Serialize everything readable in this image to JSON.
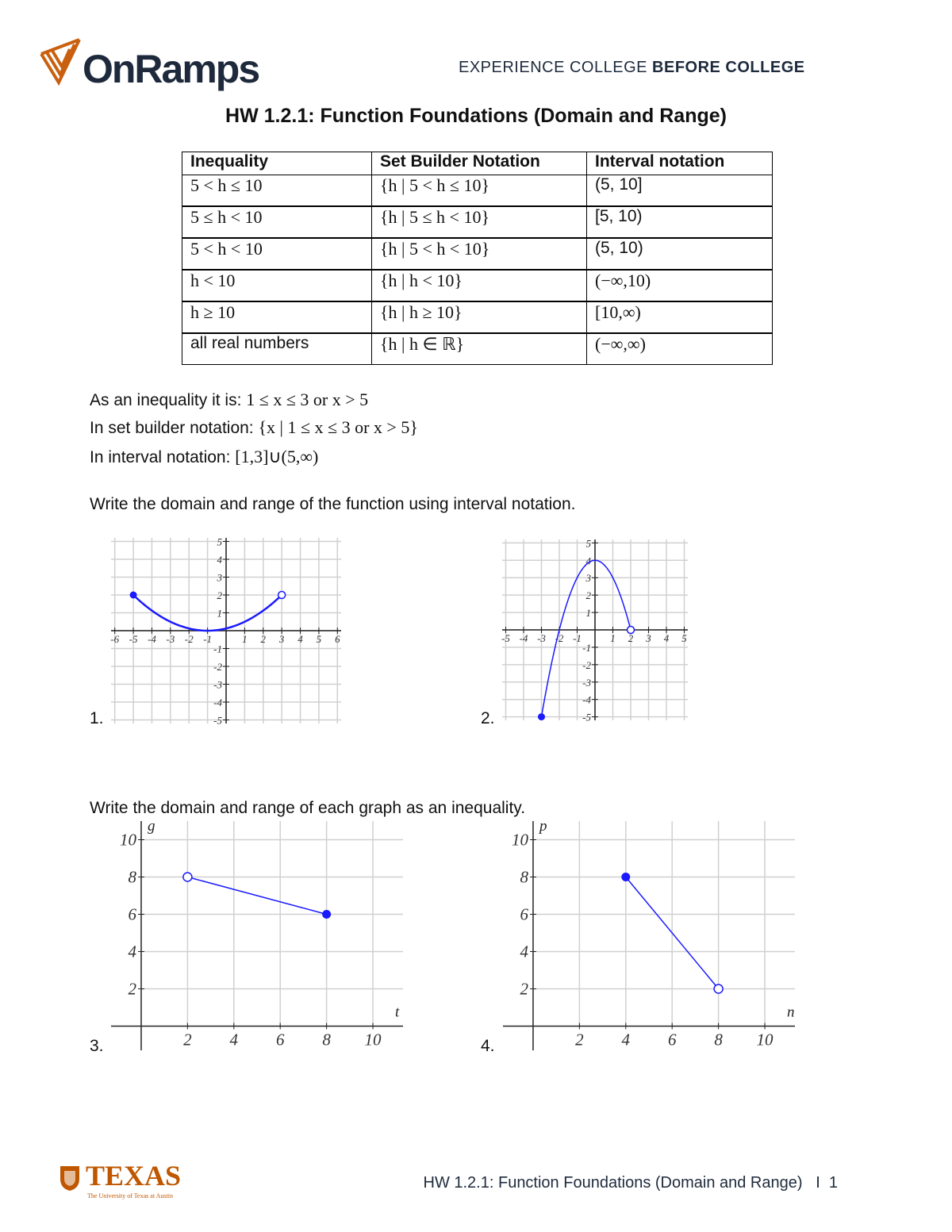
{
  "header": {
    "logo": "OnRamps",
    "tagline_light": "EXPERIENCE COLLEGE",
    "tagline_bold": "BEFORE COLLEGE",
    "brand_color": "#c8600f"
  },
  "title": "HW 1.2.1: Function Foundations (Domain and Range)",
  "table": {
    "headers": [
      "Inequality",
      "Set Builder Notation",
      "Interval notation"
    ],
    "rows": [
      [
        "5 < h ≤ 10",
        "{h | 5 < h ≤ 10}",
        "(5,  10]"
      ],
      [
        "5 ≤ h < 10",
        "{h | 5 ≤ h < 10}",
        "[5,  10)"
      ],
      [
        "5 < h < 10",
        "{h | 5 < h < 10}",
        "(5,  10)"
      ],
      [
        "h < 10",
        "{h | h < 10}",
        "(−∞,10)"
      ],
      [
        "h ≥ 10",
        "{h | h ≥ 10}",
        "[10,∞)"
      ],
      [
        "all real numbers",
        "{h | h ∈ ℝ}",
        "(−∞,∞)"
      ]
    ]
  },
  "example": {
    "ineq_label": "As an inequality it is:",
    "ineq_value": "1 ≤ x ≤ 3 or x > 5",
    "set_label": "In set builder notation:",
    "set_value": "{x | 1 ≤ x ≤ 3 or x > 5}",
    "interval_label": "In interval notation:",
    "interval_value": "[1,3]∪(5,∞)"
  },
  "instructions": {
    "part1": "Write the domain and range of the function using interval notation.",
    "part2": "Write the domain and range of each graph as an inequality."
  },
  "problem_numbers": [
    "1.",
    "2.",
    "3.",
    "4."
  ],
  "chart_data": [
    {
      "type": "line",
      "xlim": [
        -6,
        6
      ],
      "ylim": [
        -5,
        5
      ],
      "xticks": [
        -6,
        -5,
        -4,
        -3,
        -2,
        -1,
        1,
        2,
        3,
        4,
        5,
        6
      ],
      "yticks": [
        -5,
        -4,
        -3,
        -2,
        -1,
        1,
        2,
        3,
        4,
        5
      ],
      "grid": true,
      "curve": "y=(x+1)^2/8",
      "x": [
        -5,
        -4,
        -3,
        -2,
        -1,
        0,
        1,
        2,
        3
      ],
      "y": [
        2,
        1.125,
        0.5,
        0.125,
        0,
        0.125,
        0.5,
        1.125,
        2
      ],
      "closed_points": [
        [
          -5,
          2
        ]
      ],
      "open_points": [
        [
          3,
          2
        ]
      ],
      "color": "#1a1aff"
    },
    {
      "type": "line",
      "xlim": [
        -5,
        5
      ],
      "ylim": [
        -5,
        5
      ],
      "xticks": [
        -5,
        -4,
        -3,
        -2,
        -1,
        1,
        2,
        3,
        4,
        5
      ],
      "yticks": [
        -5,
        -4,
        -3,
        -2,
        -1,
        1,
        2,
        3,
        4,
        5
      ],
      "grid": true,
      "curve": "y=4-x^2",
      "x": [
        -3,
        -2.5,
        -2,
        -1.5,
        -1,
        -0.5,
        0,
        0.5,
        1,
        1.5,
        2
      ],
      "y": [
        -5,
        -2.25,
        0,
        1.75,
        3,
        3.75,
        4,
        3.75,
        3,
        1.75,
        0
      ],
      "closed_points": [
        [
          -3,
          -5
        ]
      ],
      "open_points": [
        [
          2,
          0
        ]
      ],
      "color": "#1a1aff"
    },
    {
      "type": "line",
      "xlabel": "t",
      "ylabel": "g",
      "xlim": [
        -1.3,
        11.3
      ],
      "ylim": [
        -1.3,
        11
      ],
      "xticks": [
        2,
        4,
        6,
        8,
        10
      ],
      "yticks": [
        2,
        4,
        6,
        8,
        10
      ],
      "grid": true,
      "x": [
        2,
        8
      ],
      "y": [
        8,
        6
      ],
      "closed_points": [
        [
          8,
          6
        ]
      ],
      "open_points": [
        [
          2,
          8
        ]
      ],
      "color": "#1a1aff"
    },
    {
      "type": "line",
      "xlabel": "n",
      "ylabel": "p",
      "xlim": [
        -1.3,
        11.3
      ],
      "ylim": [
        -1.3,
        11
      ],
      "xticks": [
        2,
        4,
        6,
        8,
        10
      ],
      "yticks": [
        2,
        4,
        6,
        8,
        10
      ],
      "grid": true,
      "x": [
        4,
        8
      ],
      "y": [
        8,
        2
      ],
      "closed_points": [
        [
          4,
          8
        ]
      ],
      "open_points": [
        [
          8,
          2
        ]
      ],
      "color": "#1a1aff"
    }
  ],
  "footer": {
    "text": "HW 1.2.1: Function Foundations (Domain and Range)   I  1",
    "university": "TEXAS",
    "university_sub": "The University of Texas at Austin",
    "university_color": "#bf5700"
  }
}
